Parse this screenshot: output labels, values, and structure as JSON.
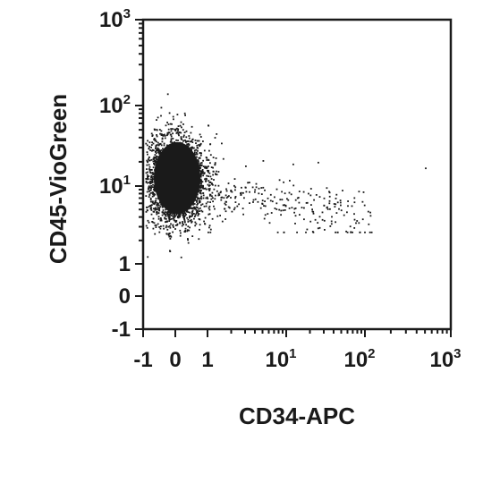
{
  "chart_data": {
    "type": "scatter",
    "xlabel": "CD34-APC",
    "ylabel": "CD45-VioGreen",
    "x_scale": "biexponential",
    "y_scale": "biexponential",
    "xlim": [
      -1,
      1000
    ],
    "ylim": [
      -1,
      1000
    ],
    "x_ticks": [
      {
        "value": -1,
        "base": "-1",
        "exp": ""
      },
      {
        "value": 0,
        "base": "0",
        "exp": ""
      },
      {
        "value": 1,
        "base": "1",
        "exp": ""
      },
      {
        "value": 10,
        "base": "10",
        "exp": "1"
      },
      {
        "value": 100,
        "base": "10",
        "exp": "2"
      },
      {
        "value": 1000,
        "base": "10",
        "exp": "3"
      }
    ],
    "y_ticks": [
      {
        "value": -1,
        "base": "-1",
        "exp": ""
      },
      {
        "value": 0,
        "base": "0",
        "exp": ""
      },
      {
        "value": 1,
        "base": "1",
        "exp": ""
      },
      {
        "value": 10,
        "base": "10",
        "exp": "1"
      },
      {
        "value": 100,
        "base": "10",
        "exp": "2"
      },
      {
        "value": 1000,
        "base": "10",
        "exp": "3"
      }
    ],
    "grid": false,
    "color": "#1a1a1a",
    "populations": [
      {
        "description": "dense CD34-negative CD45-dim cluster",
        "x_center": 0.0,
        "y_center": 12,
        "x_spread": 0.55,
        "y_spread": 0.45,
        "count": 7000
      },
      {
        "description": "sparse events extending to higher CD34",
        "x_min": 1,
        "x_max": 120,
        "y_min": 2.5,
        "y_max": 20,
        "count": 260
      }
    ],
    "notable_points": [
      {
        "x": 500,
        "y": 17
      },
      {
        "x": 25,
        "y": 20
      },
      {
        "x": 12,
        "y": 19
      },
      {
        "x": 5,
        "y": 21
      },
      {
        "x": 3,
        "y": 18
      }
    ]
  }
}
